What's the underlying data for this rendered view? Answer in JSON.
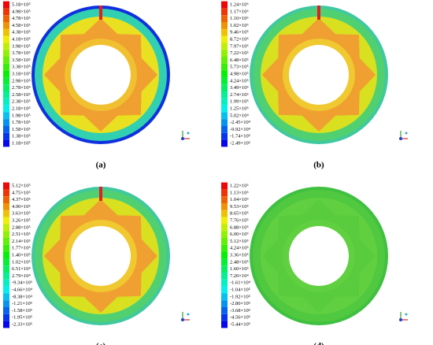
{
  "panels": [
    {
      "caption": "(a)",
      "legend": [
        "5.18×10⁵",
        "4.98×10⁵",
        "4.78×10⁵",
        "4.58×10⁵",
        "4.38×10⁵",
        "4.18×10⁵",
        "3.98×10⁵",
        "3.78×10⁵",
        "3.58×10⁵",
        "3.38×10⁵",
        "3.18×10⁵",
        "2.98×10⁵",
        "2.78×10⁵",
        "2.58×10⁵",
        "2.38×10⁵",
        "2.18×10⁵",
        "1.98×10⁵",
        "1.78×10⁵",
        "1.58×10⁵",
        "1.38×10⁵",
        "1.18×10⁵"
      ]
    },
    {
      "caption": "(b)",
      "legend": [
        "1.24×10⁶",
        "1.17×10⁶",
        "1.10×10⁶",
        "1.02×10⁶",
        "9.46×10⁵",
        "8.72×10⁵",
        "7.97×10⁵",
        "7.22×10⁵",
        "6.48×10⁵",
        "5.73×10⁵",
        "4.98×10⁵",
        "4.24×10⁵",
        "3.49×10⁵",
        "2.74×10⁵",
        "1.99×10⁵",
        "1.25×10⁵",
        "5.02×10⁴",
        "-2.45×10⁴",
        "-9.92×10⁴",
        "-1.74×10⁵",
        "-2.49×10⁵"
      ]
    },
    {
      "caption": "(c)",
      "legend": [
        "5.12×10⁵",
        "4.75×10⁵",
        "4.37×10⁵",
        "4.00×10⁵",
        "3.63×10⁵",
        "3.26×10⁵",
        "2.88×10⁵",
        "2.51×10⁵",
        "2.14×10⁵",
        "1.77×10⁵",
        "1.40×10⁵",
        "1.02×10⁵",
        "6.51×10⁴",
        "2.79×10⁴",
        "-9.34×10³",
        "-4.66×10⁴",
        "-8.38×10⁴",
        "-1.21×10⁵",
        "-1.58×10⁵",
        "-1.95×10⁵",
        "-2.33×10⁵"
      ]
    },
    {
      "caption": "(d)",
      "legend": [
        "1.22×10⁶",
        "1.13×10⁶",
        "1.04×10⁶",
        "9.53×10⁵",
        "8.65×10⁵",
        "7.76×10⁵",
        "6.88×10⁵",
        "6.00×10⁵",
        "5.12×10⁵",
        "4.24×10⁵",
        "3.36×10⁵",
        "2.48×10⁵",
        "1.60×10⁵",
        "7.20×10⁴",
        "-1.61×10⁴",
        "-1.04×10⁵",
        "-1.92×10⁵",
        "-2.80×10⁵",
        "-3.68×10⁵",
        "-4.56×10⁵",
        "-5.44×10⁵"
      ]
    }
  ]
}
